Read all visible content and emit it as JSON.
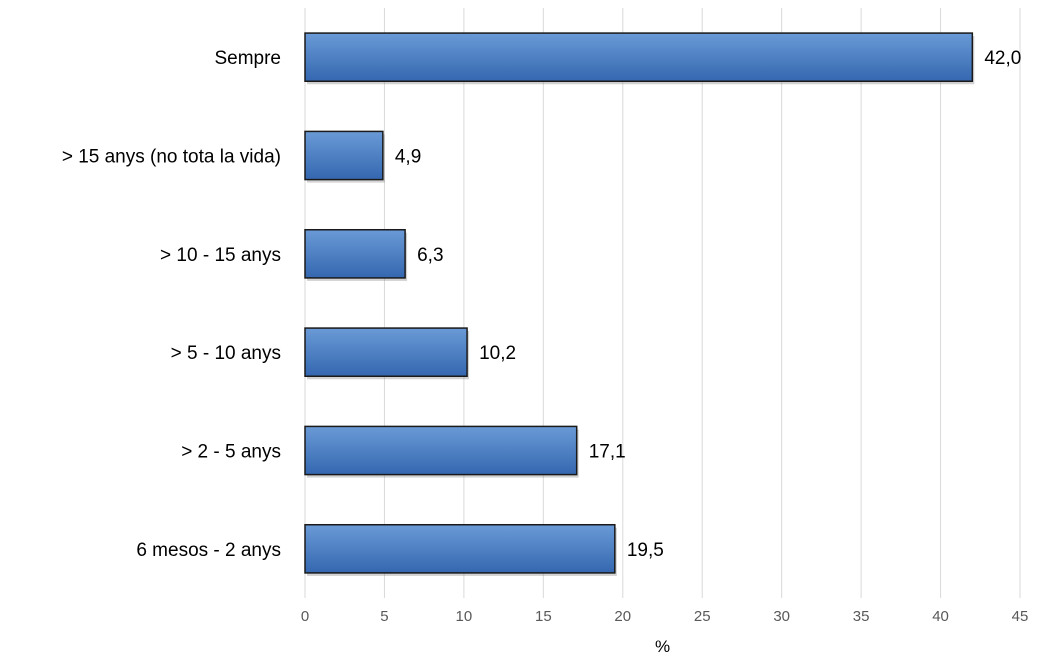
{
  "chart_data": {
    "type": "bar",
    "orientation": "horizontal",
    "categories": [
      "Sempre",
      "> 15 anys (no tota la vida)",
      "> 10 - 15 anys",
      "> 5 - 10 anys",
      "> 2 - 5 anys",
      "6 mesos - 2 anys"
    ],
    "values": [
      42.0,
      4.9,
      6.3,
      10.2,
      17.1,
      19.5
    ],
    "value_labels": [
      "42,0",
      "4,9",
      "6,3",
      "10,2",
      "17,1",
      "19,5"
    ],
    "xlabel": "%",
    "ylabel": "",
    "xlim": [
      0,
      45
    ],
    "xticks": [
      "0",
      "5",
      "10",
      "15",
      "20",
      "25",
      "30",
      "35",
      "40",
      "45"
    ],
    "grid": true,
    "legend": "none",
    "colors": {
      "bar_top": "#6a9ad6",
      "bar_bottom": "#3467b0",
      "bar_stroke": "#1a1a1a",
      "grid": "#d9d9d9"
    }
  }
}
